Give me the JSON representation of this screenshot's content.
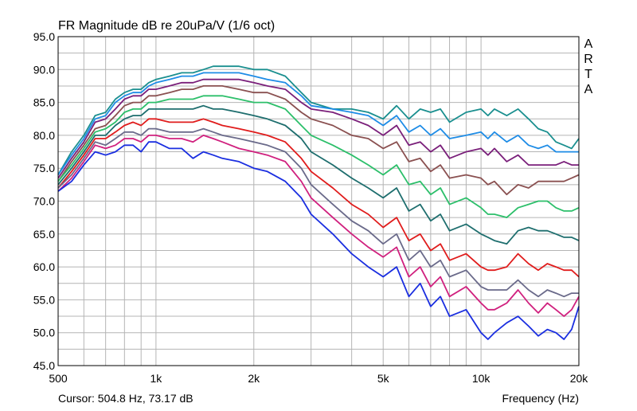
{
  "chart_data": {
    "type": "line",
    "title": "FR Magnitude dB re 20uPa/V (1/6 oct)",
    "watermark": "ARTA",
    "xlabel": "Frequency (Hz)",
    "cursor_readout": "Cursor: 504.8 Hz, 73.17 dB",
    "x_scale": "log",
    "xlim": [
      500,
      20000
    ],
    "ylim": [
      45,
      95
    ],
    "grid": true,
    "x_ticks": [
      {
        "value": 500,
        "label": "500"
      },
      {
        "value": 1000,
        "label": "1k"
      },
      {
        "value": 2000,
        "label": "2k"
      },
      {
        "value": 5000,
        "label": "5k"
      },
      {
        "value": 10000,
        "label": "10k"
      },
      {
        "value": 20000,
        "label": "20k"
      }
    ],
    "y_ticks": [
      {
        "value": 95,
        "label": "95.0"
      },
      {
        "value": 90,
        "label": "90.0"
      },
      {
        "value": 85,
        "label": "85.0"
      },
      {
        "value": 80,
        "label": "80.0"
      },
      {
        "value": 75,
        "label": "75.0"
      },
      {
        "value": 70,
        "label": "70.0"
      },
      {
        "value": 65,
        "label": "65.0"
      },
      {
        "value": 60,
        "label": "60.0"
      },
      {
        "value": 55,
        "label": "55.0"
      },
      {
        "value": 50,
        "label": "50.0"
      },
      {
        "value": 45,
        "label": "45.0"
      }
    ],
    "x": [
      500,
      550,
      600,
      650,
      700,
      750,
      800,
      850,
      900,
      950,
      1000,
      1100,
      1200,
      1300,
      1400,
      1500,
      1600,
      1800,
      2000,
      2200,
      2500,
      2800,
      3000,
      3500,
      4000,
      4500,
      5000,
      5500,
      6000,
      6500,
      7000,
      7500,
      8000,
      9000,
      10000,
      10500,
      11000,
      12000,
      13000,
      14000,
      15000,
      16000,
      17000,
      18000,
      19000,
      20000
    ],
    "series": [
      {
        "color": "#1a8f8f",
        "values": [
          74.0,
          77.5,
          80.0,
          83.0,
          83.5,
          85.5,
          86.5,
          87.0,
          87.0,
          88.0,
          88.5,
          89.0,
          89.5,
          89.5,
          90.0,
          90.5,
          90.5,
          90.5,
          90.0,
          90.0,
          89.0,
          86.5,
          85.0,
          84.0,
          84.0,
          83.5,
          82.5,
          84.5,
          82.5,
          84.0,
          83.5,
          84.0,
          82.0,
          83.5,
          84.0,
          83.0,
          84.0,
          83.0,
          84.0,
          82.5,
          81.0,
          80.5,
          79.0,
          78.5,
          78.0,
          79.5
        ]
      },
      {
        "color": "#1e8ce6",
        "values": [
          74.0,
          77.0,
          79.5,
          82.5,
          83.0,
          85.0,
          86.0,
          86.5,
          86.5,
          87.5,
          88.0,
          88.5,
          89.0,
          89.0,
          89.5,
          89.5,
          89.5,
          89.5,
          89.0,
          88.5,
          88.0,
          86.0,
          84.5,
          84.0,
          83.5,
          83.0,
          81.5,
          83.0,
          80.5,
          81.5,
          80.0,
          81.0,
          79.5,
          80.0,
          80.5,
          79.5,
          80.5,
          79.0,
          80.0,
          78.5,
          78.0,
          78.5,
          77.5,
          77.5,
          77.5,
          77.5
        ]
      },
      {
        "color": "#7a1f7a",
        "values": [
          73.5,
          76.5,
          79.0,
          82.0,
          82.5,
          84.0,
          85.5,
          86.0,
          86.0,
          87.0,
          87.0,
          87.5,
          88.0,
          88.0,
          88.5,
          88.5,
          88.5,
          88.5,
          88.0,
          87.5,
          87.0,
          85.0,
          84.0,
          83.5,
          82.5,
          81.5,
          80.0,
          81.5,
          78.5,
          79.0,
          77.5,
          78.5,
          76.5,
          77.5,
          78.0,
          77.0,
          78.0,
          76.0,
          77.0,
          75.5,
          75.5,
          75.5,
          75.5,
          76.0,
          75.5,
          75.5
        ]
      },
      {
        "color": "#8a5050",
        "values": [
          73.0,
          76.0,
          78.5,
          81.0,
          81.5,
          83.0,
          84.5,
          85.0,
          85.0,
          86.0,
          86.0,
          86.5,
          87.0,
          87.0,
          87.5,
          87.5,
          87.5,
          87.0,
          86.5,
          86.5,
          85.5,
          83.5,
          82.5,
          81.5,
          80.0,
          79.5,
          78.0,
          79.0,
          76.0,
          76.5,
          74.5,
          75.5,
          73.5,
          74.0,
          73.5,
          72.5,
          73.0,
          71.0,
          72.5,
          72.0,
          73.0,
          73.0,
          73.0,
          73.0,
          73.5,
          74.0
        ]
      },
      {
        "color": "#2cbf6a",
        "values": [
          73.0,
          75.5,
          78.0,
          80.5,
          81.0,
          82.0,
          83.5,
          84.0,
          84.0,
          85.0,
          85.0,
          85.5,
          85.5,
          85.5,
          86.0,
          86.0,
          86.0,
          85.5,
          85.0,
          85.0,
          84.0,
          81.5,
          80.0,
          78.5,
          77.0,
          75.5,
          74.0,
          75.5,
          72.5,
          73.0,
          71.0,
          72.0,
          69.5,
          70.5,
          69.0,
          68.0,
          68.0,
          67.5,
          69.0,
          69.5,
          70.0,
          70.0,
          69.0,
          68.5,
          68.5,
          69.0
        ]
      },
      {
        "color": "#1e6e6e",
        "values": [
          72.5,
          75.0,
          77.5,
          80.0,
          80.0,
          81.5,
          82.5,
          83.0,
          83.0,
          84.0,
          84.0,
          84.0,
          84.0,
          84.0,
          84.5,
          84.0,
          84.0,
          83.5,
          83.0,
          82.5,
          81.5,
          79.5,
          77.5,
          75.5,
          73.5,
          72.0,
          70.5,
          72.0,
          68.5,
          69.5,
          67.0,
          68.0,
          65.5,
          66.5,
          65.0,
          64.5,
          64.0,
          63.5,
          65.5,
          66.0,
          65.5,
          65.5,
          65.0,
          64.5,
          64.5,
          64.0
        ]
      },
      {
        "color": "#e01c1c",
        "values": [
          72.0,
          74.5,
          77.0,
          79.5,
          79.5,
          80.5,
          81.5,
          82.0,
          81.5,
          82.5,
          82.5,
          82.0,
          82.0,
          82.0,
          82.5,
          82.0,
          81.5,
          81.0,
          80.5,
          80.0,
          79.0,
          76.5,
          74.5,
          72.0,
          69.5,
          68.0,
          66.0,
          67.5,
          64.0,
          65.0,
          62.5,
          63.5,
          61.0,
          62.0,
          60.0,
          59.5,
          59.5,
          60.0,
          62.0,
          60.5,
          59.5,
          60.5,
          60.0,
          59.5,
          59.5,
          58.5
        ]
      },
      {
        "color": "#6a6a8a",
        "values": [
          72.0,
          74.0,
          76.5,
          79.0,
          78.5,
          79.5,
          80.5,
          80.5,
          80.0,
          81.0,
          81.0,
          80.5,
          80.5,
          80.5,
          81.0,
          80.5,
          80.0,
          79.5,
          79.0,
          78.5,
          77.5,
          75.0,
          72.5,
          69.5,
          67.0,
          65.5,
          63.5,
          65.0,
          61.0,
          62.5,
          60.0,
          61.0,
          58.5,
          59.5,
          57.0,
          56.5,
          56.5,
          56.5,
          58.0,
          56.5,
          55.5,
          56.5,
          56.0,
          55.5,
          56.0,
          56.0
        ]
      },
      {
        "color": "#d0207e",
        "values": [
          71.5,
          73.5,
          76.0,
          78.5,
          78.0,
          78.5,
          79.5,
          79.5,
          79.0,
          80.0,
          80.0,
          79.5,
          79.5,
          79.0,
          80.0,
          79.5,
          79.0,
          78.0,
          77.5,
          77.0,
          76.0,
          73.0,
          70.5,
          67.5,
          65.0,
          63.0,
          61.5,
          63.0,
          58.5,
          60.0,
          57.0,
          58.5,
          55.5,
          57.0,
          54.5,
          53.5,
          53.5,
          54.5,
          56.5,
          54.5,
          53.0,
          54.5,
          53.5,
          52.5,
          53.5,
          55.5
        ]
      },
      {
        "color": "#1a2ee0",
        "values": [
          71.5,
          73.0,
          75.5,
          77.5,
          77.0,
          77.5,
          78.5,
          78.5,
          77.5,
          79.0,
          79.0,
          78.0,
          78.0,
          76.5,
          77.5,
          77.0,
          76.5,
          76.0,
          75.0,
          74.5,
          73.0,
          70.5,
          68.0,
          65.0,
          62.0,
          60.0,
          58.5,
          60.0,
          55.5,
          57.5,
          54.0,
          55.5,
          52.5,
          53.5,
          50.0,
          49.0,
          50.0,
          51.5,
          52.5,
          51.0,
          49.5,
          50.5,
          50.0,
          49.0,
          50.5,
          54.0
        ]
      }
    ]
  }
}
